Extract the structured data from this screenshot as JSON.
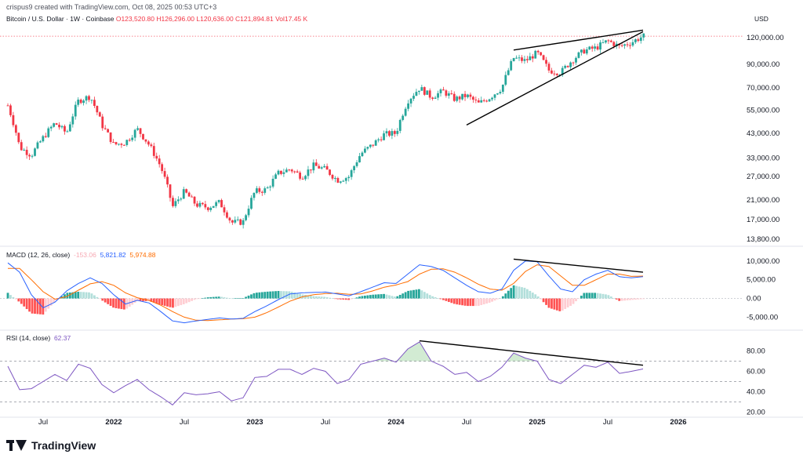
{
  "header": {
    "created_by": "crispus9 created with TradingView.com, Oct 08, 2025 00:53 UTC+3",
    "symbol": "Bitcoin / U.S. Dollar · 1W · Coinbase",
    "ohlc": "O123,520.80 H126,296.00 L120,636.00 C121,894.81 Vol17.45 K"
  },
  "branding": {
    "logo_text": "TradingView"
  },
  "colors": {
    "up": "#26a69a",
    "down": "#f23645",
    "macd": "#2962ff",
    "signal": "#ff6d00",
    "rsi": "#7e57c2",
    "trendline": "#000000"
  },
  "chart_data": [
    {
      "type": "candlestick",
      "currency_label": "USD",
      "y_scale": "log",
      "yticks": [
        13800,
        17000,
        21000,
        27000,
        33000,
        43000,
        55000,
        70000,
        90000,
        120000
      ],
      "ytick_labels": [
        "13,800.00",
        "17,000.00",
        "21,000.00",
        "27,000.00",
        "33,000.00",
        "43,000.00",
        "55,000.00",
        "70,000.00",
        "90,000.00",
        "120,000.00"
      ],
      "last_close": 121894.81,
      "xtick_labels": [
        "Jul",
        "2022",
        "Jul",
        "2023",
        "Jul",
        "2024",
        "Jul",
        "2025",
        "Jul",
        "2026"
      ],
      "x_start": "2021-04",
      "anchors": [
        [
          "2021-04",
          58000
        ],
        [
          "2021-05",
          37000
        ],
        [
          "2021-06",
          34000
        ],
        [
          "2021-07",
          41000
        ],
        [
          "2021-08",
          48000
        ],
        [
          "2021-09",
          43000
        ],
        [
          "2021-10",
          61000
        ],
        [
          "2021-11",
          64000
        ],
        [
          "2021-12",
          47000
        ],
        [
          "2022-01",
          38000
        ],
        [
          "2022-02",
          39000
        ],
        [
          "2022-03",
          45000
        ],
        [
          "2022-04",
          38000
        ],
        [
          "2022-05",
          30000
        ],
        [
          "2022-06",
          19500
        ],
        [
          "2022-07",
          23000
        ],
        [
          "2022-08",
          20000
        ],
        [
          "2022-09",
          19400
        ],
        [
          "2022-10",
          20500
        ],
        [
          "2022-11",
          16500
        ],
        [
          "2022-12",
          16600
        ],
        [
          "2023-01",
          23000
        ],
        [
          "2023-02",
          23500
        ],
        [
          "2023-03",
          28000
        ],
        [
          "2023-04",
          29300
        ],
        [
          "2023-05",
          27000
        ],
        [
          "2023-06",
          30400
        ],
        [
          "2023-07",
          29200
        ],
        [
          "2023-08",
          26000
        ],
        [
          "2023-09",
          27000
        ],
        [
          "2023-10",
          34500
        ],
        [
          "2023-11",
          38000
        ],
        [
          "2023-12",
          42500
        ],
        [
          "2024-01",
          43000
        ],
        [
          "2024-02",
          61000
        ],
        [
          "2024-03",
          70000
        ],
        [
          "2024-04",
          63500
        ],
        [
          "2024-05",
          67500
        ],
        [
          "2024-06",
          62000
        ],
        [
          "2024-07",
          64500
        ],
        [
          "2024-08",
          59000
        ],
        [
          "2024-09",
          63300
        ],
        [
          "2024-10",
          70000
        ],
        [
          "2024-11",
          96500
        ],
        [
          "2024-12",
          93500
        ],
        [
          "2025-01",
          102000
        ],
        [
          "2025-02",
          84500
        ],
        [
          "2025-03",
          82500
        ],
        [
          "2025-04",
          94500
        ],
        [
          "2025-05",
          104500
        ],
        [
          "2025-06",
          107500
        ],
        [
          "2025-07",
          116000
        ],
        [
          "2025-08",
          109000
        ],
        [
          "2025-09",
          114000
        ],
        [
          "2025-10",
          121894.81
        ]
      ]
    },
    {
      "type": "line",
      "title": "MACD (12, 26, close)",
      "values_label": [
        "-153.06",
        "5,821.82",
        "5,974.88"
      ],
      "yticks": [
        -5000,
        0,
        5000,
        10000
      ],
      "ytick_labels": [
        "-5,000.00",
        "0.00",
        "5,000.00",
        "10,000.00"
      ],
      "series": [
        {
          "name": "MACD",
          "anchors": [
            [
              "2021-04",
              9500
            ],
            [
              "2021-05",
              7000
            ],
            [
              "2021-06",
              1000
            ],
            [
              "2021-07",
              -2500
            ],
            [
              "2021-08",
              -1000
            ],
            [
              "2021-09",
              2000
            ],
            [
              "2021-10",
              4000
            ],
            [
              "2021-11",
              5500
            ],
            [
              "2021-12",
              4000
            ],
            [
              "2022-01",
              1000
            ],
            [
              "2022-02",
              -1500
            ],
            [
              "2022-03",
              -500
            ],
            [
              "2022-04",
              -1200
            ],
            [
              "2022-05",
              -3500
            ],
            [
              "2022-06",
              -6000
            ],
            [
              "2022-07",
              -6500
            ],
            [
              "2022-08",
              -6000
            ],
            [
              "2022-09",
              -5600
            ],
            [
              "2022-10",
              -5200
            ],
            [
              "2022-11",
              -5500
            ],
            [
              "2022-12",
              -5300
            ],
            [
              "2023-01",
              -3500
            ],
            [
              "2023-02",
              -2000
            ],
            [
              "2023-03",
              -300
            ],
            [
              "2023-04",
              1200
            ],
            [
              "2023-05",
              1500
            ],
            [
              "2023-06",
              1600
            ],
            [
              "2023-07",
              1700
            ],
            [
              "2023-08",
              1200
            ],
            [
              "2023-09",
              700
            ],
            [
              "2023-10",
              1800
            ],
            [
              "2023-11",
              3000
            ],
            [
              "2023-12",
              4200
            ],
            [
              "2024-01",
              4000
            ],
            [
              "2024-02",
              6500
            ],
            [
              "2024-03",
              9000
            ],
            [
              "2024-04",
              8500
            ],
            [
              "2024-05",
              7500
            ],
            [
              "2024-06",
              5500
            ],
            [
              "2024-07",
              3500
            ],
            [
              "2024-08",
              1800
            ],
            [
              "2024-09",
              1400
            ],
            [
              "2024-10",
              2500
            ],
            [
              "2024-11",
              7500
            ],
            [
              "2024-12",
              10000
            ],
            [
              "2025-01",
              9800
            ],
            [
              "2025-02",
              6000
            ],
            [
              "2025-03",
              2500
            ],
            [
              "2025-04",
              1800
            ],
            [
              "2025-05",
              5000
            ],
            [
              "2025-06",
              6500
            ],
            [
              "2025-07",
              7500
            ],
            [
              "2025-08",
              5800
            ],
            [
              "2025-09",
              5500
            ],
            [
              "2025-10",
              5822
            ]
          ]
        },
        {
          "name": "Signal",
          "anchors": [
            [
              "2021-04",
              8000
            ],
            [
              "2021-05",
              8000
            ],
            [
              "2021-06",
              5000
            ],
            [
              "2021-07",
              1800
            ],
            [
              "2021-08",
              -200
            ],
            [
              "2021-09",
              500
            ],
            [
              "2021-10",
              2200
            ],
            [
              "2021-11",
              3900
            ],
            [
              "2021-12",
              4500
            ],
            [
              "2022-01",
              3500
            ],
            [
              "2022-02",
              1500
            ],
            [
              "2022-03",
              200
            ],
            [
              "2022-04",
              -500
            ],
            [
              "2022-05",
              -1800
            ],
            [
              "2022-06",
              -3500
            ],
            [
              "2022-07",
              -5000
            ],
            [
              "2022-08",
              -5800
            ],
            [
              "2022-09",
              -5900
            ],
            [
              "2022-10",
              -5700
            ],
            [
              "2022-11",
              -5500
            ],
            [
              "2022-12",
              -5400
            ],
            [
              "2023-01",
              -5000
            ],
            [
              "2023-02",
              -3800
            ],
            [
              "2023-03",
              -2300
            ],
            [
              "2023-04",
              -700
            ],
            [
              "2023-05",
              400
            ],
            [
              "2023-06",
              1000
            ],
            [
              "2023-07",
              1300
            ],
            [
              "2023-08",
              1400
            ],
            [
              "2023-09",
              1100
            ],
            [
              "2023-10",
              1200
            ],
            [
              "2023-11",
              2000
            ],
            [
              "2023-12",
              3000
            ],
            [
              "2024-01",
              3600
            ],
            [
              "2024-02",
              4500
            ],
            [
              "2024-03",
              6500
            ],
            [
              "2024-04",
              7800
            ],
            [
              "2024-05",
              7900
            ],
            [
              "2024-06",
              7000
            ],
            [
              "2024-07",
              5500
            ],
            [
              "2024-08",
              3800
            ],
            [
              "2024-09",
              2500
            ],
            [
              "2024-10",
              2200
            ],
            [
              "2024-11",
              4000
            ],
            [
              "2024-12",
              7200
            ],
            [
              "2025-01",
              9000
            ],
            [
              "2025-02",
              8500
            ],
            [
              "2025-03",
              6000
            ],
            [
              "2025-04",
              3500
            ],
            [
              "2025-05",
              3500
            ],
            [
              "2025-06",
              5000
            ],
            [
              "2025-07",
              6500
            ],
            [
              "2025-08",
              6500
            ],
            [
              "2025-09",
              5900
            ],
            [
              "2025-10",
              5975
            ]
          ]
        }
      ]
    },
    {
      "type": "line",
      "title": "RSI (14, close)",
      "value_label": "62.37",
      "yticks": [
        20,
        40,
        60,
        80
      ],
      "ytick_labels": [
        "20.00",
        "40.00",
        "60.00",
        "80.00"
      ],
      "levels": [
        70,
        50,
        30
      ],
      "series": [
        {
          "name": "RSI",
          "anchors": [
            [
              "2021-04",
              65
            ],
            [
              "2021-05",
              42
            ],
            [
              "2021-06",
              43
            ],
            [
              "2021-07",
              50
            ],
            [
              "2021-08",
              57
            ],
            [
              "2021-09",
              51
            ],
            [
              "2021-10",
              67
            ],
            [
              "2021-11",
              63
            ],
            [
              "2021-12",
              47
            ],
            [
              "2022-01",
              39
            ],
            [
              "2022-02",
              46
            ],
            [
              "2022-03",
              52
            ],
            [
              "2022-04",
              42
            ],
            [
              "2022-05",
              35
            ],
            [
              "2022-06",
              27
            ],
            [
              "2022-07",
              39
            ],
            [
              "2022-08",
              37
            ],
            [
              "2022-09",
              38
            ],
            [
              "2022-10",
              40
            ],
            [
              "2022-11",
              31
            ],
            [
              "2022-12",
              34
            ],
            [
              "2023-01",
              54
            ],
            [
              "2023-02",
              55
            ],
            [
              "2023-03",
              62
            ],
            [
              "2023-04",
              62
            ],
            [
              "2023-05",
              57
            ],
            [
              "2023-06",
              63
            ],
            [
              "2023-07",
              60
            ],
            [
              "2023-08",
              48
            ],
            [
              "2023-09",
              52
            ],
            [
              "2023-10",
              67
            ],
            [
              "2023-11",
              70
            ],
            [
              "2023-12",
              73
            ],
            [
              "2024-01",
              69
            ],
            [
              "2024-02",
              82
            ],
            [
              "2024-03",
              89
            ],
            [
              "2024-04",
              70
            ],
            [
              "2024-05",
              65
            ],
            [
              "2024-06",
              57
            ],
            [
              "2024-07",
              59
            ],
            [
              "2024-08",
              50
            ],
            [
              "2024-09",
              55
            ],
            [
              "2024-10",
              64
            ],
            [
              "2024-11",
              78
            ],
            [
              "2024-12",
              73
            ],
            [
              "2025-01",
              70
            ],
            [
              "2025-02",
              52
            ],
            [
              "2025-03",
              48
            ],
            [
              "2025-04",
              57
            ],
            [
              "2025-05",
              66
            ],
            [
              "2025-06",
              64
            ],
            [
              "2025-07",
              69
            ],
            [
              "2025-08",
              58
            ],
            [
              "2025-09",
              60
            ],
            [
              "2025-10",
              62.37
            ]
          ]
        }
      ]
    }
  ],
  "annotations": {
    "trendlines": [
      {
        "panel": "price",
        "from": [
          "2024-11",
          105000
        ],
        "to": [
          "2025-10",
          130000
        ]
      },
      {
        "panel": "price",
        "from": [
          "2024-07",
          47000
        ],
        "to": [
          "2025-10",
          128000
        ]
      },
      {
        "panel": "macd",
        "from": [
          "2024-11",
          10500
        ],
        "to": [
          "2025-10",
          7000
        ]
      },
      {
        "panel": "rsi",
        "from": [
          "2024-03",
          90
        ],
        "to": [
          "2025-10",
          66
        ]
      }
    ]
  }
}
